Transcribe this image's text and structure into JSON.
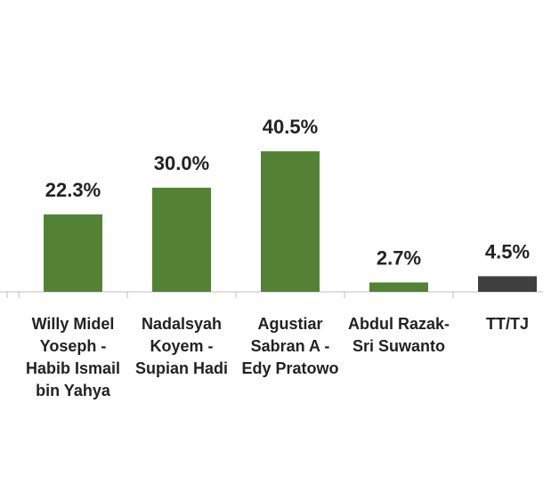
{
  "chart_data": {
    "type": "bar",
    "categories": [
      "Willy Midel Yoseph - Habib Ismail bin Yahya",
      "Nadalsyah Koyem - Supian Hadi",
      "Agustiar Sabran A - Edy Pratowo",
      "Abdul Razak- Sri Suwanto",
      "TT/TJ"
    ],
    "values": [
      22.3,
      30.0,
      40.5,
      2.7,
      4.5
    ],
    "value_labels": [
      "22.3%",
      "30.0%",
      "40.5%",
      "2.7%",
      "4.5%"
    ],
    "colors": [
      "#548235",
      "#548235",
      "#548235",
      "#548235",
      "#404040"
    ]
  }
}
